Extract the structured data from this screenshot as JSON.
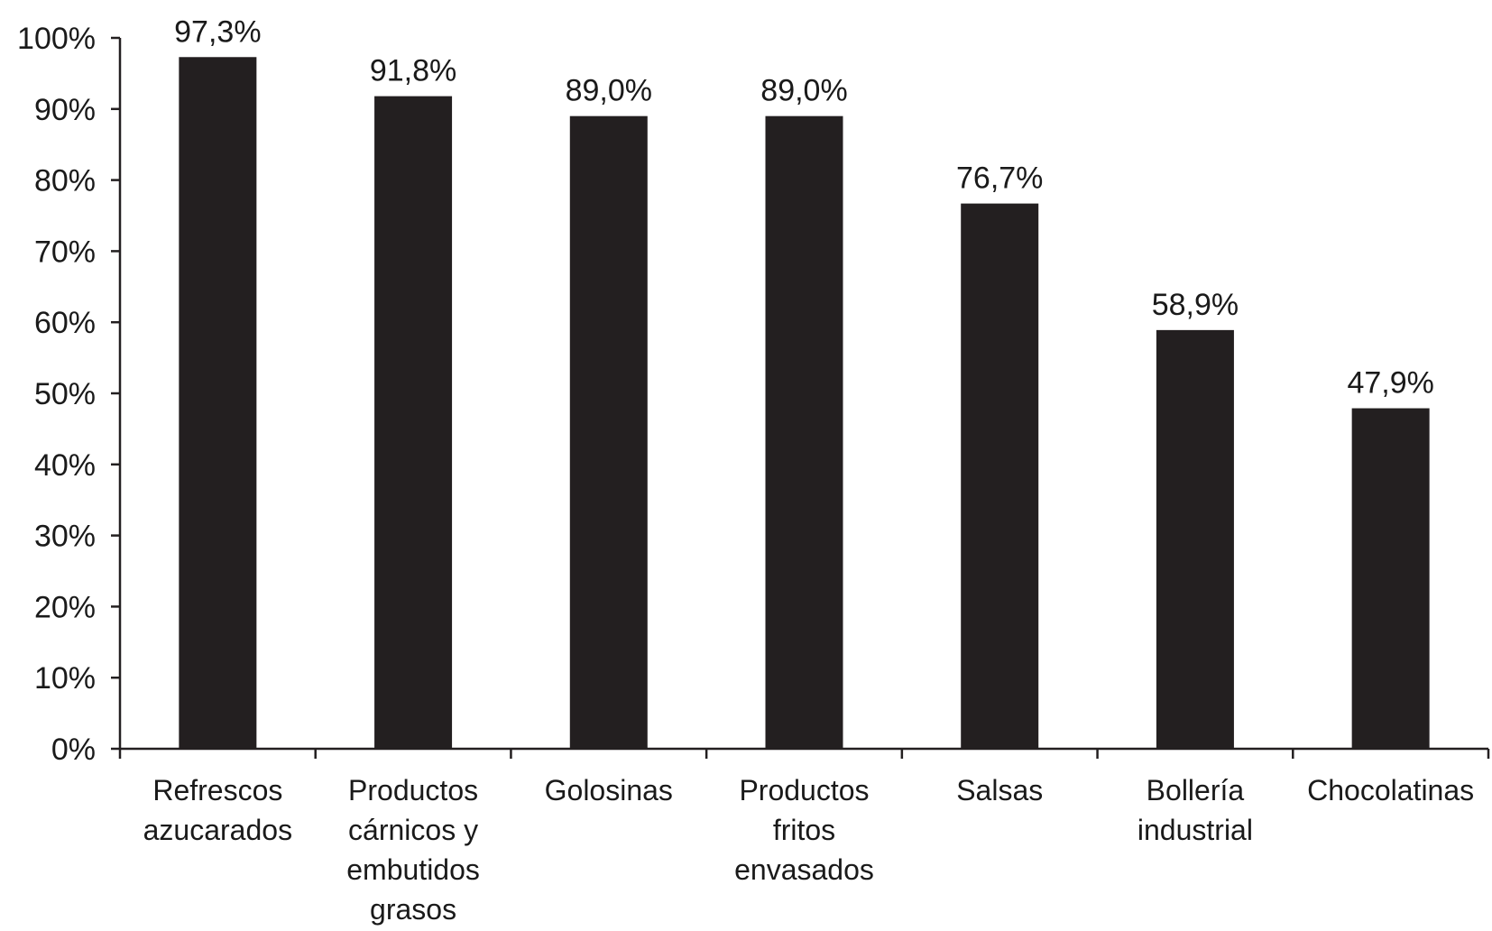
{
  "chart_data": {
    "type": "bar",
    "categories": [
      "Refrescos azucarados",
      "Productos cárnicos y embutidos grasos",
      "Golosinas",
      "Productos fritos envasados",
      "Salsas",
      "Bollería industrial",
      "Chocolatinas"
    ],
    "category_lines": [
      [
        "Refrescos",
        "azucarados"
      ],
      [
        "Productos",
        "cárnicos y",
        "embutidos",
        "grasos"
      ],
      [
        "Golosinas"
      ],
      [
        "Productos",
        "fritos",
        "envasados"
      ],
      [
        "Salsas"
      ],
      [
        "Bollería",
        "industrial"
      ],
      [
        "Chocolatinas"
      ]
    ],
    "values": [
      97.3,
      91.8,
      89.0,
      89.0,
      76.7,
      58.9,
      47.9
    ],
    "value_labels": [
      "97,3%",
      "91,8%",
      "89,0%",
      "89,0%",
      "76,7%",
      "58,9%",
      "47,9%"
    ],
    "ylim": [
      0,
      100
    ],
    "yticks": [
      0,
      10,
      20,
      30,
      40,
      50,
      60,
      70,
      80,
      90,
      100
    ],
    "ytick_labels": [
      "0%",
      "10%",
      "20%",
      "30%",
      "40%",
      "50%",
      "60%",
      "70%",
      "80%",
      "90%",
      "100%"
    ],
    "bar_color": "#231f20",
    "axis_color": "#231f20",
    "grid": false,
    "legend": "none"
  }
}
